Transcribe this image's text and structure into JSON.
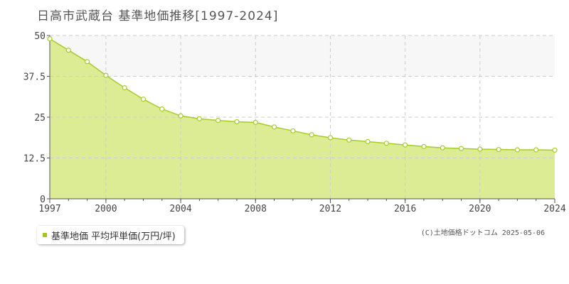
{
  "page": {
    "title": "日高市武蔵台 基準地価推移[1997-2024]",
    "credit": "(C)土地価格ドットコム 2025-05-06"
  },
  "chart_data": {
    "type": "area",
    "title": "日高市武蔵台 基準地価推移[1997-2024]",
    "series": [
      {
        "name": "基準地価 平均坪単価(万円/坪)",
        "x": [
          1997,
          1998,
          1999,
          2000,
          2001,
          2002,
          2003,
          2004,
          2005,
          2006,
          2007,
          2008,
          2009,
          2010,
          2011,
          2012,
          2013,
          2014,
          2015,
          2016,
          2017,
          2018,
          2019,
          2020,
          2021,
          2022,
          2023,
          2024
        ],
        "values": [
          49.0,
          45.5,
          42.0,
          37.8,
          34.0,
          30.5,
          27.5,
          25.4,
          24.5,
          24.0,
          23.6,
          23.4,
          22.0,
          20.8,
          19.6,
          18.7,
          18.0,
          17.5,
          17.0,
          16.5,
          16.0,
          15.6,
          15.4,
          15.2,
          15.1,
          15.0,
          15.0,
          14.9
        ]
      }
    ],
    "xlim": [
      1997,
      2024
    ],
    "ylim": [
      0,
      50
    ],
    "x_ticks": [
      "1997",
      "2000",
      "2004",
      "2008",
      "2012",
      "2016",
      "2020",
      "2024"
    ],
    "y_ticks": [
      "0",
      "12.5",
      "25",
      "37.5",
      "50"
    ],
    "grid": true,
    "legend": "bottom-left",
    "colors": {
      "fill": "#dcec94",
      "line": "#a5cc28",
      "marker_fill": "#ffffff",
      "band": "#f7f7f7",
      "grid": "#cccccc",
      "axis": "#555555"
    }
  }
}
